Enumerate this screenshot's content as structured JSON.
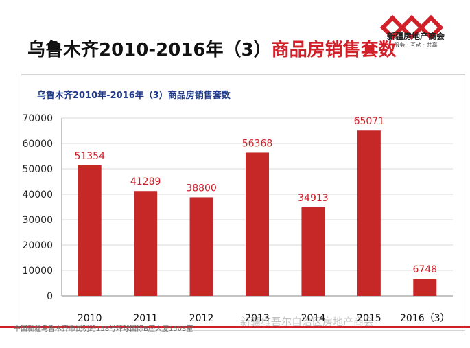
{
  "slide": {
    "title_main": "乌鲁木齐2010-2016年（3）",
    "title_accent": "商品房销售套数"
  },
  "logo": {
    "name": "新疆房地产商会",
    "slogan": "服务 · 互动 · 共赢"
  },
  "footer": {
    "address": "中国新疆乌鲁木齐市昆明路158号环球国际B座大厦1503室"
  },
  "watermark": "新疆维吾尔自治区房地产商会",
  "colors": {
    "accent": "#d0202a",
    "bar": "#c62828",
    "label": "#d0202a",
    "chart_title": "#1f3a8a"
  },
  "chart_data": {
    "type": "bar",
    "title": "乌鲁木齐2010年-2016年（3）商品房销售套数",
    "categories": [
      "2010",
      "2011",
      "2012",
      "2013",
      "2014",
      "2015",
      "2016（3）"
    ],
    "values": [
      51354,
      41289,
      38800,
      56368,
      34913,
      65071,
      6748
    ],
    "ylim": [
      0,
      70000
    ],
    "yticks": [
      0,
      10000,
      20000,
      30000,
      40000,
      50000,
      60000,
      70000
    ],
    "grid": true,
    "legend": "none"
  }
}
